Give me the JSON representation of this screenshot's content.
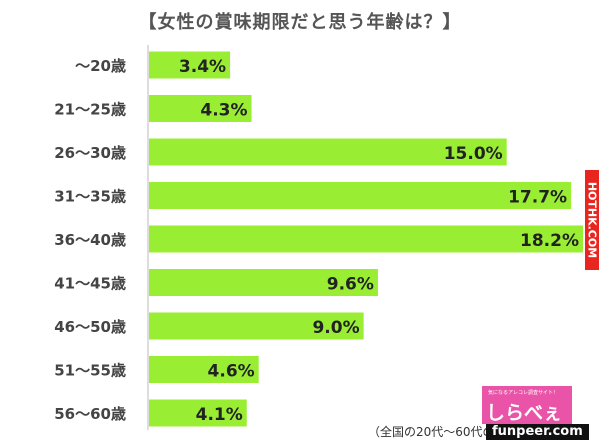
{
  "chart_data": {
    "type": "bar",
    "orientation": "horizontal",
    "title": "【女性の賞味期限だと思う年齢は？】",
    "categories": [
      "～20歳",
      "21～25歳",
      "26～30歳",
      "31～35歳",
      "36～40歳",
      "41～45歳",
      "46～50歳",
      "51～55歳",
      "56～60歳"
    ],
    "values": [
      3.4,
      4.3,
      15.0,
      17.7,
      18.2,
      9.6,
      9.0,
      4.6,
      4.1
    ],
    "value_labels": [
      "3.4%",
      "4.3%",
      "15.0%",
      "17.7%",
      "18.2%",
      "9.6%",
      "9.0%",
      "4.6%",
      "4.1%"
    ],
    "unit": "%",
    "xlim": [
      0,
      18.2
    ],
    "grid": false,
    "legend": "none",
    "bar_color": "#99ee33",
    "source_note": "（全国の20代～60代の"
  },
  "watermarks": {
    "hothk": "HOTHK.COM",
    "funpeer": "funpeer.com",
    "shirabee_small": "気になるアレコレ調査サイト！",
    "shirabee_main": "しらべぇ"
  },
  "colors": {
    "hothk_bg": "#e8251e",
    "shirabee_bg": "#ea54a8"
  }
}
